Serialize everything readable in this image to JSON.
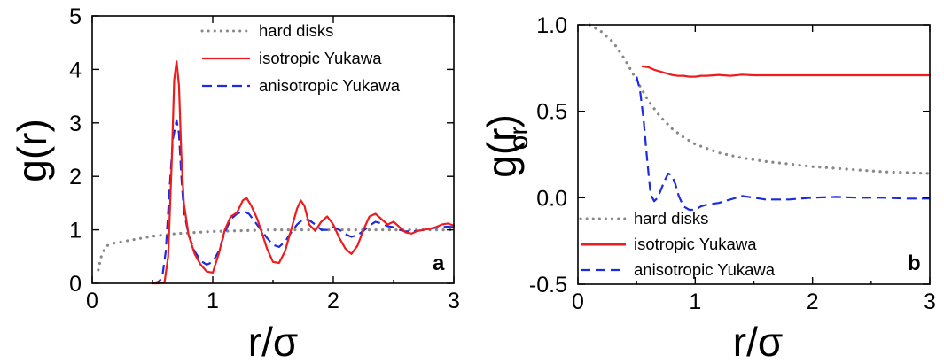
{
  "chart_data": [
    {
      "type": "line",
      "panel_label": "a",
      "ylabel": "g(r)",
      "xlabel": "r/σ",
      "xlim": [
        0,
        3
      ],
      "ylim": [
        0,
        5
      ],
      "xticks": [
        "0",
        "1",
        "2",
        "3"
      ],
      "yticks": [
        "0",
        "1",
        "2",
        "3",
        "4",
        "5"
      ],
      "legend_position": "top-right",
      "grid": false,
      "series": [
        {
          "name": "hard disks",
          "color": "#888888",
          "style": "dotted",
          "x": [
            0.05,
            0.08,
            0.12,
            0.18,
            0.25,
            0.35,
            0.5,
            0.7,
            1.0,
            1.5,
            2.0,
            2.5,
            3.0
          ],
          "y": [
            0.25,
            0.55,
            0.7,
            0.75,
            0.78,
            0.82,
            0.88,
            0.93,
            0.97,
            1.0,
            1.0,
            1.0,
            1.0
          ]
        },
        {
          "name": "isotropic Yukawa",
          "color": "#ee1c1c",
          "style": "solid",
          "x": [
            0.5,
            0.55,
            0.6,
            0.63,
            0.66,
            0.68,
            0.7,
            0.72,
            0.74,
            0.76,
            0.8,
            0.85,
            0.9,
            0.95,
            1.0,
            1.05,
            1.1,
            1.15,
            1.2,
            1.25,
            1.28,
            1.32,
            1.37,
            1.4,
            1.45,
            1.5,
            1.55,
            1.6,
            1.65,
            1.7,
            1.73,
            1.76,
            1.8,
            1.85,
            1.9,
            1.95,
            2.0,
            2.05,
            2.1,
            2.15,
            2.2,
            2.25,
            2.3,
            2.35,
            2.4,
            2.45,
            2.5,
            2.55,
            2.6,
            2.65,
            2.7,
            2.75,
            2.8,
            2.85,
            2.9,
            2.95,
            3.0
          ],
          "y": [
            0.0,
            0.0,
            0.02,
            0.5,
            2.3,
            3.8,
            4.15,
            3.7,
            2.4,
            1.5,
            0.9,
            0.55,
            0.35,
            0.22,
            0.2,
            0.55,
            1.0,
            1.25,
            1.32,
            1.55,
            1.6,
            1.45,
            1.2,
            1.0,
            0.65,
            0.4,
            0.38,
            0.6,
            1.0,
            1.4,
            1.55,
            1.45,
            1.1,
            0.98,
            1.15,
            1.25,
            1.1,
            0.85,
            0.65,
            0.55,
            0.7,
            1.0,
            1.25,
            1.3,
            1.2,
            1.1,
            1.15,
            1.05,
            0.95,
            0.93,
            0.98,
            1.0,
            1.02,
            1.05,
            1.1,
            1.12,
            1.08
          ]
        },
        {
          "name": "anisotropic Yukawa",
          "color": "#1b2be0",
          "style": "dashed",
          "x": [
            0.5,
            0.55,
            0.58,
            0.61,
            0.64,
            0.67,
            0.7,
            0.72,
            0.74,
            0.76,
            0.8,
            0.85,
            0.9,
            0.95,
            1.0,
            1.05,
            1.1,
            1.15,
            1.2,
            1.25,
            1.3,
            1.35,
            1.4,
            1.45,
            1.5,
            1.55,
            1.6,
            1.65,
            1.7,
            1.75,
            1.8,
            1.85,
            1.9,
            1.95,
            2.0,
            2.05,
            2.1,
            2.15,
            2.2,
            2.25,
            2.3,
            2.35,
            2.4,
            2.45,
            2.5,
            2.55,
            2.6,
            2.65,
            2.7,
            2.75,
            2.8,
            2.85,
            2.9,
            2.95,
            3.0
          ],
          "y": [
            0.0,
            0.03,
            0.1,
            0.6,
            1.7,
            2.7,
            3.05,
            2.8,
            2.0,
            1.35,
            0.9,
            0.6,
            0.42,
            0.35,
            0.4,
            0.6,
            0.95,
            1.2,
            1.3,
            1.35,
            1.3,
            1.15,
            1.0,
            0.85,
            0.72,
            0.68,
            0.78,
            0.95,
            1.1,
            1.2,
            1.18,
            1.1,
            1.0,
            1.0,
            1.05,
            1.0,
            0.92,
            0.87,
            0.9,
            0.98,
            1.08,
            1.15,
            1.12,
            1.07,
            1.05,
            1.0,
            0.97,
            0.97,
            0.98,
            1.0,
            1.02,
            1.04,
            1.05,
            1.06,
            1.05
          ]
        }
      ]
    },
    {
      "type": "line",
      "panel_label": "b",
      "ylabel": "g(r)",
      "ylabel_subscript": "or",
      "xlabel": "r/σ",
      "xlim": [
        0,
        3
      ],
      "ylim": [
        -0.5,
        1.0
      ],
      "xticks": [
        "0",
        "1",
        "2",
        "3"
      ],
      "yticks": [
        "-0.5",
        "0.0",
        "0.5",
        "1.0"
      ],
      "legend_position": "bottom-left",
      "grid": false,
      "series": [
        {
          "name": "hard disks",
          "color": "#888888",
          "style": "dotted",
          "x": [
            0.1,
            0.2,
            0.3,
            0.4,
            0.5,
            0.6,
            0.7,
            0.8,
            0.9,
            1.0,
            1.2,
            1.4,
            1.6,
            1.8,
            2.0,
            2.2,
            2.4,
            2.6,
            2.8,
            3.0
          ],
          "y": [
            1.0,
            0.96,
            0.9,
            0.8,
            0.68,
            0.56,
            0.47,
            0.4,
            0.35,
            0.31,
            0.26,
            0.23,
            0.21,
            0.195,
            0.18,
            0.17,
            0.16,
            0.15,
            0.145,
            0.14
          ]
        },
        {
          "name": "isotropic Yukawa",
          "color": "#ee1c1c",
          "style": "solid",
          "x": [
            0.55,
            0.6,
            0.65,
            0.7,
            0.75,
            0.8,
            0.85,
            0.9,
            0.95,
            1.0,
            1.05,
            1.1,
            1.2,
            1.3,
            1.4,
            1.5,
            1.7,
            2.0,
            2.5,
            3.0
          ],
          "y": [
            0.76,
            0.755,
            0.74,
            0.73,
            0.72,
            0.71,
            0.705,
            0.705,
            0.7,
            0.7,
            0.705,
            0.705,
            0.71,
            0.705,
            0.712,
            0.708,
            0.708,
            0.708,
            0.708,
            0.708
          ]
        },
        {
          "name": "anisotropic Yukawa",
          "color": "#1b2be0",
          "style": "dashed",
          "x": [
            0.5,
            0.53,
            0.56,
            0.59,
            0.62,
            0.65,
            0.68,
            0.71,
            0.74,
            0.77,
            0.8,
            0.83,
            0.86,
            0.9,
            0.95,
            1.0,
            1.05,
            1.1,
            1.2,
            1.3,
            1.4,
            1.5,
            1.6,
            1.8,
            2.0,
            2.2,
            2.4,
            2.6,
            2.8,
            3.0
          ],
          "y": [
            0.7,
            0.62,
            0.45,
            0.22,
            0.02,
            -0.02,
            0.0,
            0.05,
            0.1,
            0.14,
            0.13,
            0.08,
            0.01,
            -0.05,
            -0.07,
            -0.07,
            -0.05,
            -0.04,
            -0.03,
            -0.01,
            0.01,
            0.0,
            -0.01,
            -0.01,
            0.0,
            0.005,
            0.0,
            0.0,
            -0.005,
            -0.005
          ]
        }
      ]
    }
  ]
}
